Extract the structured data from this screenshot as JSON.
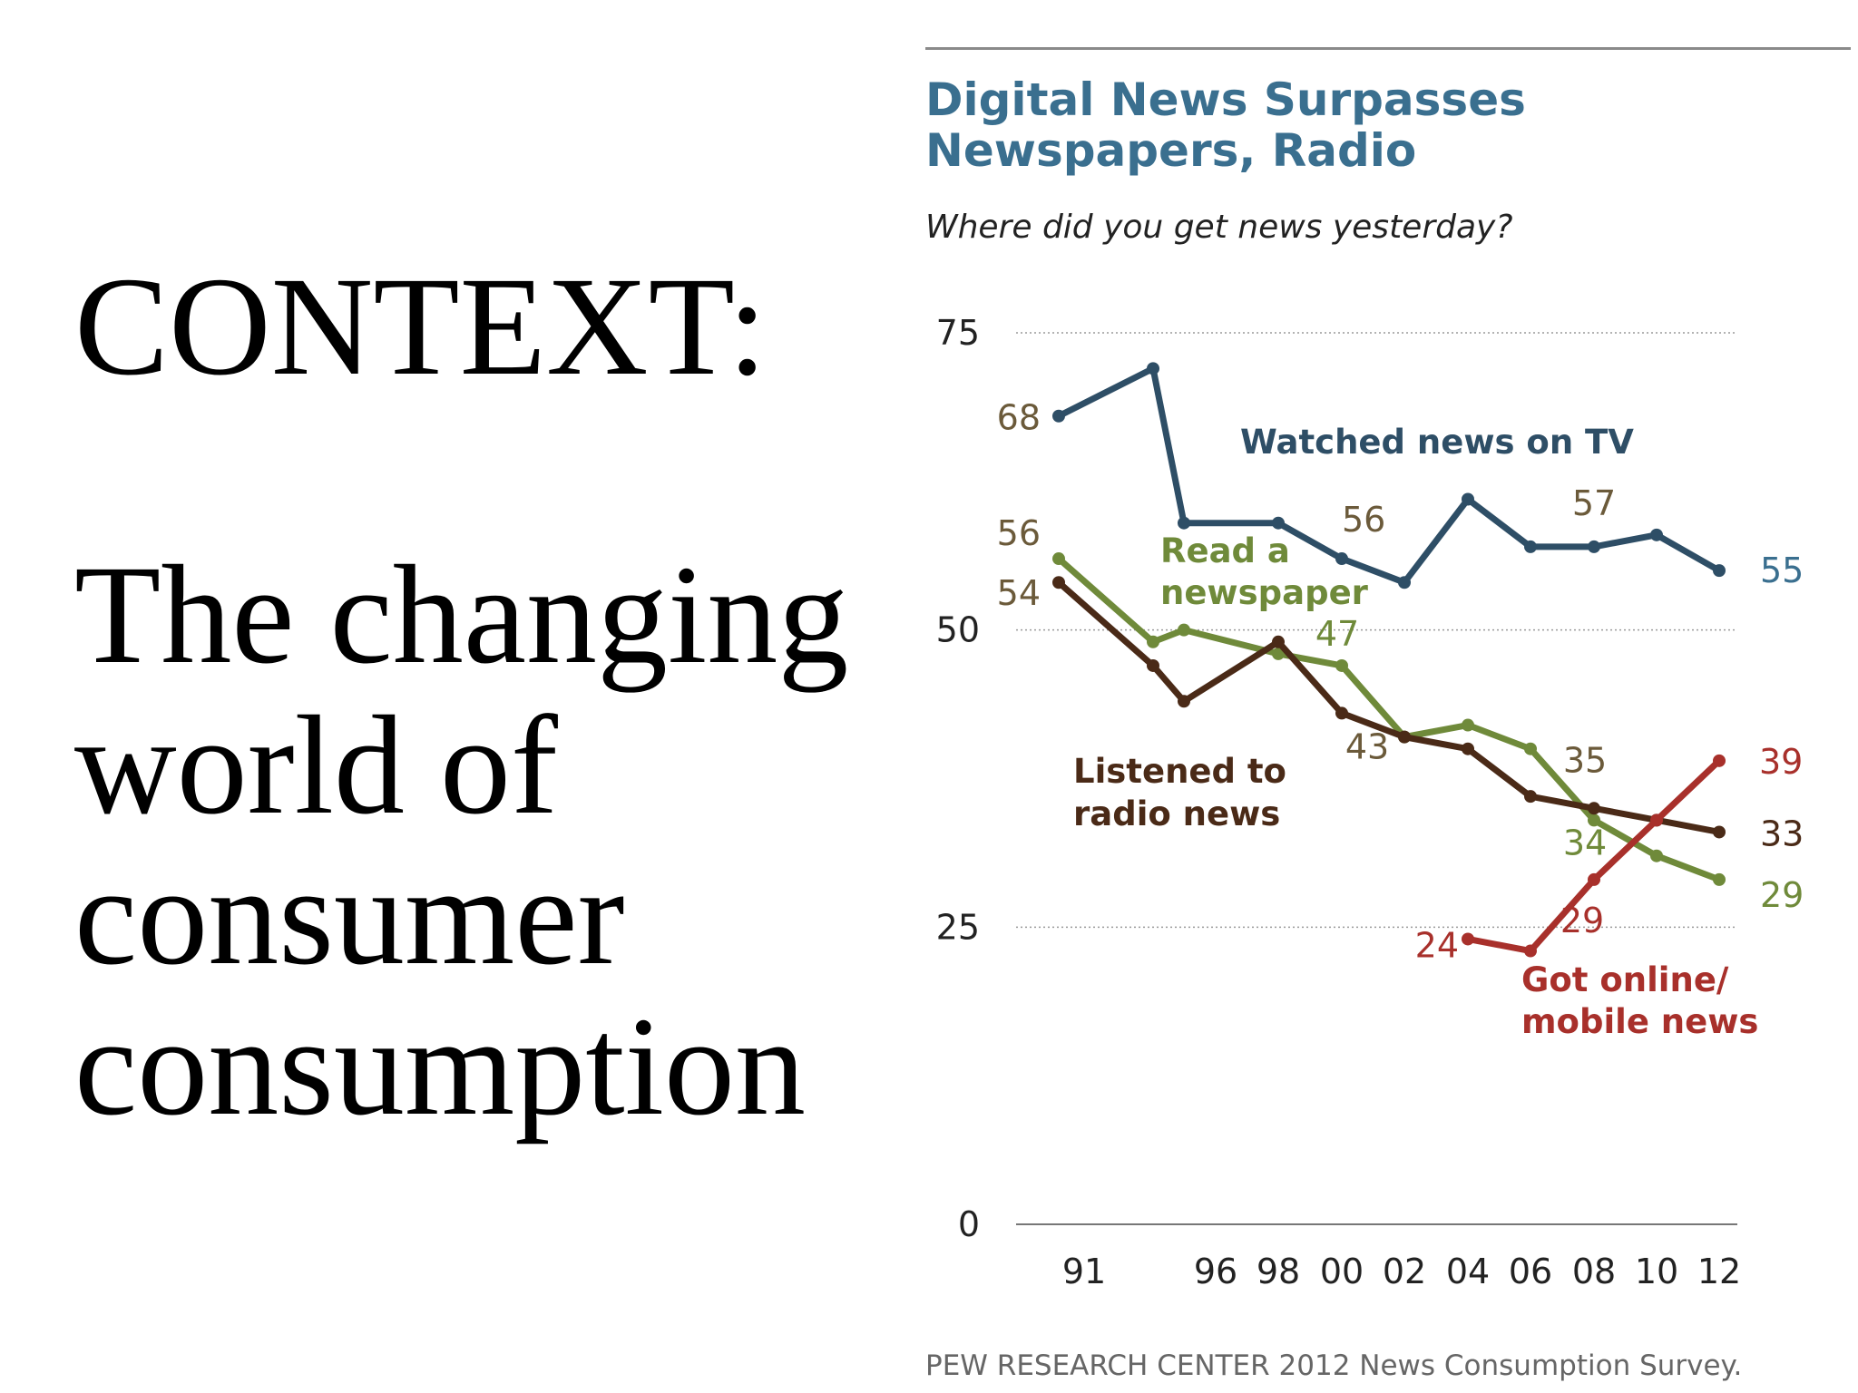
{
  "slide": {
    "heading": "CONTEXT:",
    "body_lines": [
      "The changing",
      "world of",
      "consumer",
      "consumption"
    ]
  },
  "chart_data": {
    "type": "line",
    "title_lines": [
      "Digital News Surpasses",
      "Newspapers, Radio"
    ],
    "subtitle": "Where did you get news yesterday?",
    "source": "PEW RESEARCH CENTER 2012 News Consumption Survey.",
    "ylim": [
      0,
      75
    ],
    "yticks": [
      0,
      25,
      50,
      75
    ],
    "x_years": [
      1991,
      1994,
      1996,
      1998,
      2000,
      2002,
      2004,
      2006,
      2008,
      2010,
      2012
    ],
    "x_tick_labels": [
      {
        "year": 1991,
        "label": "91"
      },
      {
        "year": 1996,
        "label": "96"
      },
      {
        "year": 1998,
        "label": "98"
      },
      {
        "year": 2000,
        "label": "00"
      },
      {
        "year": 2002,
        "label": "02"
      },
      {
        "year": 2004,
        "label": "04"
      },
      {
        "year": 2006,
        "label": "06"
      },
      {
        "year": 2008,
        "label": "08"
      },
      {
        "year": 2010,
        "label": "10"
      },
      {
        "year": 2012,
        "label": "12"
      }
    ],
    "grid": "dotted horizontal at 25, 50, 75; solid baseline at 0",
    "series": [
      {
        "name_lines": [
          "Watched news on TV"
        ],
        "color": "#2e4e66",
        "years": [
          1991,
          1994,
          1996,
          1998,
          2000,
          2002,
          2004,
          2006,
          2008,
          2010,
          2012
        ],
        "values": [
          68,
          72,
          59,
          59,
          56,
          54,
          61,
          57,
          57,
          58,
          55
        ],
        "labels": [
          {
            "year": 1991,
            "text": "68"
          },
          {
            "year": 2000,
            "text": "56"
          },
          {
            "year": 2008,
            "text": "57"
          },
          {
            "year": 2012,
            "text": "55"
          }
        ]
      },
      {
        "name_lines": [
          "Read a",
          "newspaper"
        ],
        "color": "#6f8a3a",
        "years": [
          1991,
          1994,
          1996,
          1998,
          2000,
          2002,
          2004,
          2006,
          2008,
          2010,
          2012
        ],
        "values": [
          56,
          49,
          50,
          48,
          47,
          41,
          42,
          40,
          34,
          31,
          29
        ],
        "labels": [
          {
            "year": 1991,
            "text": "56"
          },
          {
            "year": 2000,
            "text": "47"
          },
          {
            "year": 2008,
            "text": "34"
          },
          {
            "year": 2012,
            "text": "29"
          }
        ]
      },
      {
        "name_lines": [
          "Listened to",
          "radio news"
        ],
        "color": "#4a2a17",
        "years": [
          1991,
          1994,
          1996,
          1998,
          2000,
          2002,
          2004,
          2006,
          2008,
          2010,
          2012
        ],
        "values": [
          54,
          47,
          44,
          49,
          43,
          41,
          40,
          36,
          35,
          34,
          33
        ],
        "labels": [
          {
            "year": 1991,
            "text": "54"
          },
          {
            "year": 2000,
            "text": "43"
          },
          {
            "year": 2008,
            "text": "35"
          },
          {
            "year": 2012,
            "text": "33"
          }
        ]
      },
      {
        "name_lines": [
          "Got online/",
          "mobile news"
        ],
        "color": "#a8302b",
        "years": [
          2004,
          2006,
          2008,
          2010,
          2012
        ],
        "values": [
          24,
          23,
          29,
          34,
          39
        ],
        "labels": [
          {
            "year": 2004,
            "text": "24"
          },
          {
            "year": 2008,
            "text": "29"
          },
          {
            "year": 2012,
            "text": "39"
          }
        ]
      }
    ]
  }
}
